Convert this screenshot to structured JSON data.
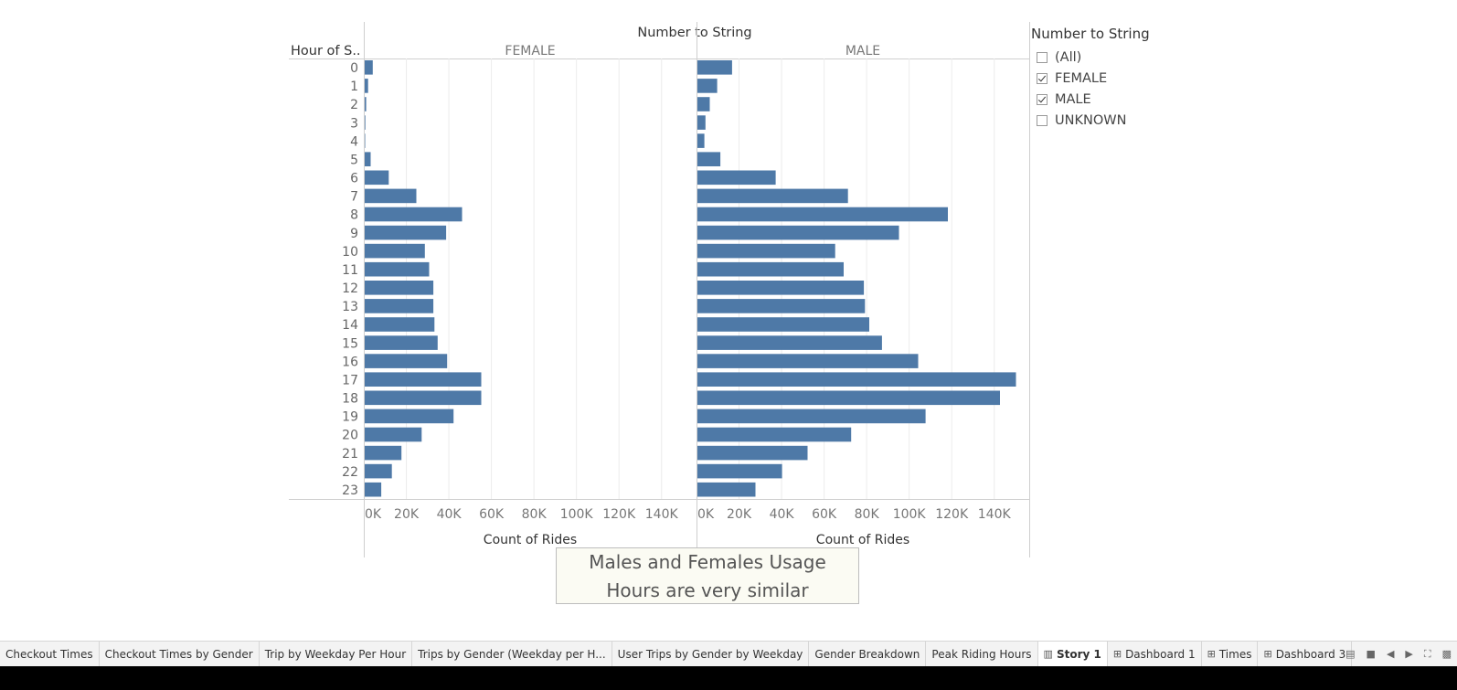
{
  "chart_data": {
    "type": "bar",
    "orientation": "horizontal",
    "title": "Number to String",
    "row_header": "Hour of S..",
    "categories": [
      "0",
      "1",
      "2",
      "3",
      "4",
      "5",
      "6",
      "7",
      "8",
      "9",
      "10",
      "11",
      "12",
      "13",
      "14",
      "15",
      "16",
      "17",
      "18",
      "19",
      "20",
      "21",
      "22",
      "23"
    ],
    "series": [
      {
        "name": "FEMALE",
        "values": [
          4000,
          1800,
          900,
          500,
          400,
          3000,
          11500,
          24500,
          46000,
          38500,
          28500,
          30500,
          32500,
          32500,
          33000,
          34500,
          39000,
          55000,
          55000,
          42000,
          27000,
          17500,
          13000,
          8000
        ]
      },
      {
        "name": "MALE",
        "values": [
          16500,
          9500,
          6000,
          4000,
          3500,
          11000,
          37000,
          71000,
          118000,
          95000,
          65000,
          69000,
          78500,
          79000,
          81000,
          87000,
          104000,
          150000,
          142500,
          107500,
          72500,
          52000,
          40000,
          27500
        ]
      }
    ],
    "xlabel": "Count of Rides",
    "xlim": [
      0,
      150000
    ],
    "x_ticks": [
      "0K",
      "20K",
      "40K",
      "60K",
      "80K",
      "100K",
      "120K",
      "140K"
    ],
    "x_tick_values": [
      0,
      20000,
      40000,
      60000,
      80000,
      100000,
      120000,
      140000
    ],
    "bar_color": "#4e79a7",
    "grid": true
  },
  "legend": {
    "title": "Number to String",
    "items": [
      {
        "label": "(All)",
        "checked": false
      },
      {
        "label": "FEMALE",
        "checked": true
      },
      {
        "label": "MALE",
        "checked": true
      },
      {
        "label": "UNKNOWN",
        "checked": false
      }
    ]
  },
  "caption": {
    "line1": "Males and Females Usage",
    "line2": "Hours are very similar"
  },
  "tabs": [
    {
      "label": "Checkout Times",
      "icon": "",
      "active": false
    },
    {
      "label": "Checkout Times by Gender",
      "icon": "",
      "active": false
    },
    {
      "label": "Trip by Weekday Per Hour",
      "icon": "",
      "active": false
    },
    {
      "label": "Trips by Gender (Weekday per H...",
      "icon": "",
      "active": false
    },
    {
      "label": "User Trips by Gender by Weekday",
      "icon": "",
      "active": false
    },
    {
      "label": "Gender Breakdown",
      "icon": "",
      "active": false
    },
    {
      "label": "Peak Riding Hours",
      "icon": "",
      "active": false
    },
    {
      "label": "Story 1",
      "icon": "book-icon",
      "active": true
    },
    {
      "label": "Dashboard 1",
      "icon": "grid-icon",
      "active": false
    },
    {
      "label": "Times",
      "icon": "grid-icon",
      "active": false
    },
    {
      "label": "Dashboard 3",
      "icon": "grid-icon",
      "active": false
    }
  ],
  "nav": {
    "icons": [
      "filmstrip-icon",
      "square-icon",
      "prev-icon",
      "next-icon",
      "fullscreen-icon",
      "present-icon"
    ]
  }
}
